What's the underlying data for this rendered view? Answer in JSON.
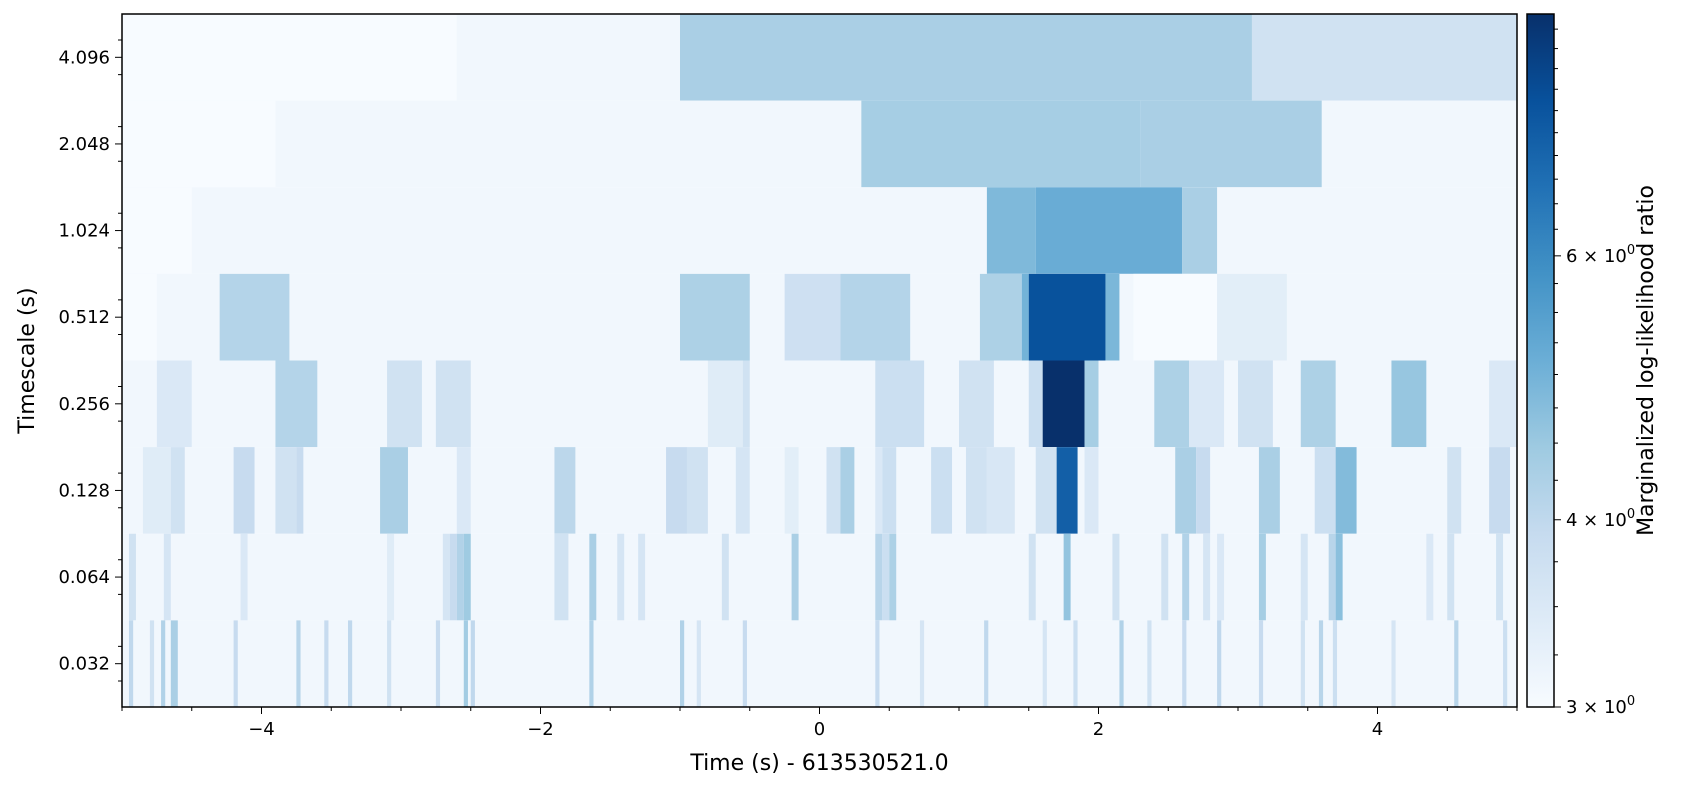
{
  "chart_data": {
    "type": "heatmap",
    "xlabel": "Time (s) - 613530521.0",
    "ylabel": "Timescale (s)",
    "colorbar_label": "Marginalized log-likelihood ratio",
    "colormap": "Blues",
    "xlim": [
      -5.0,
      5.0
    ],
    "x_ticks": [
      -4,
      -2,
      0,
      2,
      4
    ],
    "x_tick_labels": [
      "−4",
      "−2",
      "0",
      "2",
      "4"
    ],
    "y_tick_labels": [
      "4.096",
      "2.048",
      "1.024",
      "0.512",
      "0.256",
      "0.128",
      "0.064",
      "0.032"
    ],
    "color_scale": "log",
    "color_range": [
      3.0,
      8.7
    ],
    "colorbar_ticks": [
      {
        "value": 3,
        "base": "3",
        "mult": "×",
        "exp_base": "10",
        "exp": "0"
      },
      {
        "value": 4,
        "base": "4",
        "mult": "×",
        "exp_base": "10",
        "exp": "0"
      },
      {
        "value": 6,
        "base": "6",
        "mult": "×",
        "exp_base": "10",
        "exp": "0"
      }
    ],
    "background_value": 3.1,
    "rows": [
      {
        "timescale": 4.096,
        "cells": [
          [
            -5.0,
            -2.6,
            3.0
          ],
          [
            -2.6,
            -1.0,
            3.1
          ],
          [
            -1.0,
            3.1,
            4.3
          ],
          [
            3.1,
            5.0,
            3.7
          ]
        ]
      },
      {
        "timescale": 2.048,
        "cells": [
          [
            -5.0,
            -3.9,
            3.0
          ],
          [
            0.3,
            2.3,
            4.35
          ],
          [
            2.3,
            3.6,
            4.3
          ]
        ]
      },
      {
        "timescale": 1.024,
        "cells": [
          [
            -5.0,
            -4.5,
            3.0
          ],
          [
            1.2,
            1.55,
            4.85
          ],
          [
            1.55,
            2.6,
            5.15
          ],
          [
            2.6,
            2.85,
            4.3
          ]
        ]
      },
      {
        "timescale": 0.512,
        "cells": [
          [
            -5.0,
            -4.75,
            3.0
          ],
          [
            -4.3,
            -3.8,
            4.15
          ],
          [
            -1.0,
            -0.5,
            4.25
          ],
          [
            -0.25,
            0.15,
            3.75
          ],
          [
            0.15,
            0.65,
            4.15
          ],
          [
            1.15,
            1.45,
            4.25
          ],
          [
            1.45,
            1.5,
            5.0
          ],
          [
            1.5,
            2.05,
            7.6
          ],
          [
            2.05,
            2.15,
            4.9
          ],
          [
            2.25,
            2.85,
            3.0
          ],
          [
            2.85,
            3.35,
            3.35
          ]
        ]
      },
      {
        "timescale": 0.256,
        "cells": [
          [
            -4.75,
            -4.5,
            3.5
          ],
          [
            -3.9,
            -3.6,
            4.15
          ],
          [
            -3.1,
            -2.85,
            3.7
          ],
          [
            -2.75,
            -2.5,
            3.7
          ],
          [
            -0.8,
            -0.55,
            3.4
          ],
          [
            -0.55,
            -0.5,
            3.7
          ],
          [
            0.4,
            0.75,
            3.8
          ],
          [
            1.0,
            1.25,
            3.7
          ],
          [
            1.5,
            1.6,
            3.8
          ],
          [
            1.6,
            1.9,
            8.7
          ],
          [
            1.9,
            2.0,
            4.35
          ],
          [
            2.4,
            2.65,
            4.25
          ],
          [
            2.65,
            2.9,
            3.5
          ],
          [
            3.0,
            3.25,
            3.7
          ],
          [
            3.45,
            3.7,
            4.25
          ],
          [
            4.1,
            4.35,
            4.55
          ],
          [
            4.8,
            5.0,
            3.5
          ]
        ]
      },
      {
        "timescale": 0.128,
        "cells": [
          [
            -4.85,
            -4.65,
            3.4
          ],
          [
            -4.65,
            -4.55,
            3.7
          ],
          [
            -4.2,
            -4.05,
            3.9
          ],
          [
            -3.9,
            -3.75,
            3.7
          ],
          [
            -3.75,
            -3.7,
            3.9
          ],
          [
            -3.15,
            -2.95,
            4.3
          ],
          [
            -2.6,
            -2.5,
            3.5
          ],
          [
            -1.9,
            -1.75,
            4.05
          ],
          [
            -1.1,
            -0.95,
            3.9
          ],
          [
            -0.95,
            -0.8,
            3.7
          ],
          [
            -0.6,
            -0.5,
            3.6
          ],
          [
            -0.25,
            -0.15,
            3.35
          ],
          [
            0.05,
            0.15,
            3.7
          ],
          [
            0.15,
            0.25,
            4.3
          ],
          [
            0.4,
            0.45,
            3.5
          ],
          [
            0.45,
            0.55,
            3.8
          ],
          [
            0.8,
            0.95,
            3.8
          ],
          [
            1.05,
            1.2,
            3.7
          ],
          [
            1.2,
            1.4,
            3.55
          ],
          [
            1.55,
            1.7,
            3.7
          ],
          [
            1.7,
            1.85,
            7.2
          ],
          [
            1.9,
            2.0,
            3.5
          ],
          [
            2.55,
            2.7,
            4.3
          ],
          [
            2.7,
            2.8,
            3.9
          ],
          [
            3.15,
            3.3,
            4.3
          ],
          [
            3.55,
            3.7,
            3.8
          ],
          [
            3.7,
            3.85,
            4.8
          ],
          [
            4.5,
            4.6,
            3.7
          ],
          [
            4.8,
            4.95,
            3.9
          ]
        ]
      },
      {
        "timescale": 0.064,
        "cells": [
          [
            -4.95,
            -4.9,
            3.7
          ],
          [
            -4.7,
            -4.65,
            3.6
          ],
          [
            -4.15,
            -4.1,
            3.5
          ],
          [
            -3.1,
            -3.05,
            3.4
          ],
          [
            -2.7,
            -2.65,
            3.6
          ],
          [
            -2.65,
            -2.6,
            3.9
          ],
          [
            -2.6,
            -2.55,
            4.2
          ],
          [
            -2.55,
            -2.5,
            4.45
          ],
          [
            -1.9,
            -1.8,
            3.7
          ],
          [
            -1.65,
            -1.6,
            4.3
          ],
          [
            -1.45,
            -1.4,
            3.6
          ],
          [
            -1.3,
            -1.25,
            3.6
          ],
          [
            -0.7,
            -0.65,
            3.7
          ],
          [
            -0.2,
            -0.15,
            4.3
          ],
          [
            0.4,
            0.45,
            4.1
          ],
          [
            0.45,
            0.5,
            3.8
          ],
          [
            0.5,
            0.55,
            4.25
          ],
          [
            1.5,
            1.55,
            3.7
          ],
          [
            1.75,
            1.8,
            4.6
          ],
          [
            2.1,
            2.15,
            3.7
          ],
          [
            2.45,
            2.5,
            3.7
          ],
          [
            2.6,
            2.65,
            4.2
          ],
          [
            2.75,
            2.8,
            3.6
          ],
          [
            2.85,
            2.9,
            3.5
          ],
          [
            3.15,
            3.2,
            4.35
          ],
          [
            3.45,
            3.5,
            3.6
          ],
          [
            3.65,
            3.7,
            4.1
          ],
          [
            3.7,
            3.75,
            4.7
          ],
          [
            4.35,
            4.4,
            3.5
          ],
          [
            4.5,
            4.55,
            3.7
          ],
          [
            4.85,
            4.9,
            3.7
          ]
        ]
      },
      {
        "timescale": 0.032,
        "cells": [
          [
            -4.95,
            -4.92,
            4.0
          ],
          [
            -4.8,
            -4.77,
            3.7
          ],
          [
            -4.72,
            -4.69,
            4.2
          ],
          [
            -4.65,
            -4.6,
            4.3
          ],
          [
            -4.2,
            -4.17,
            3.9
          ],
          [
            -3.75,
            -3.72,
            4.1
          ],
          [
            -3.55,
            -3.52,
            3.9
          ],
          [
            -3.38,
            -3.35,
            4.0
          ],
          [
            -3.1,
            -3.07,
            3.7
          ],
          [
            -2.75,
            -2.72,
            3.9
          ],
          [
            -2.55,
            -2.52,
            4.4
          ],
          [
            -2.5,
            -2.47,
            4.0
          ],
          [
            -1.65,
            -1.62,
            4.2
          ],
          [
            -1.0,
            -0.97,
            4.2
          ],
          [
            -0.88,
            -0.85,
            3.6
          ],
          [
            -0.55,
            -0.52,
            3.9
          ],
          [
            0.4,
            0.43,
            3.9
          ],
          [
            0.72,
            0.75,
            3.6
          ],
          [
            1.18,
            1.21,
            4.0
          ],
          [
            1.6,
            1.63,
            3.6
          ],
          [
            1.82,
            1.85,
            3.8
          ],
          [
            2.15,
            2.18,
            4.2
          ],
          [
            2.35,
            2.38,
            3.7
          ],
          [
            2.6,
            2.63,
            3.9
          ],
          [
            2.85,
            2.88,
            4.0
          ],
          [
            3.15,
            3.18,
            3.9
          ],
          [
            3.45,
            3.48,
            3.7
          ],
          [
            3.58,
            3.61,
            4.1
          ],
          [
            3.68,
            3.71,
            3.8
          ],
          [
            4.1,
            4.13,
            3.6
          ],
          [
            4.55,
            4.58,
            4.1
          ],
          [
            4.9,
            4.93,
            3.8
          ]
        ]
      }
    ]
  }
}
